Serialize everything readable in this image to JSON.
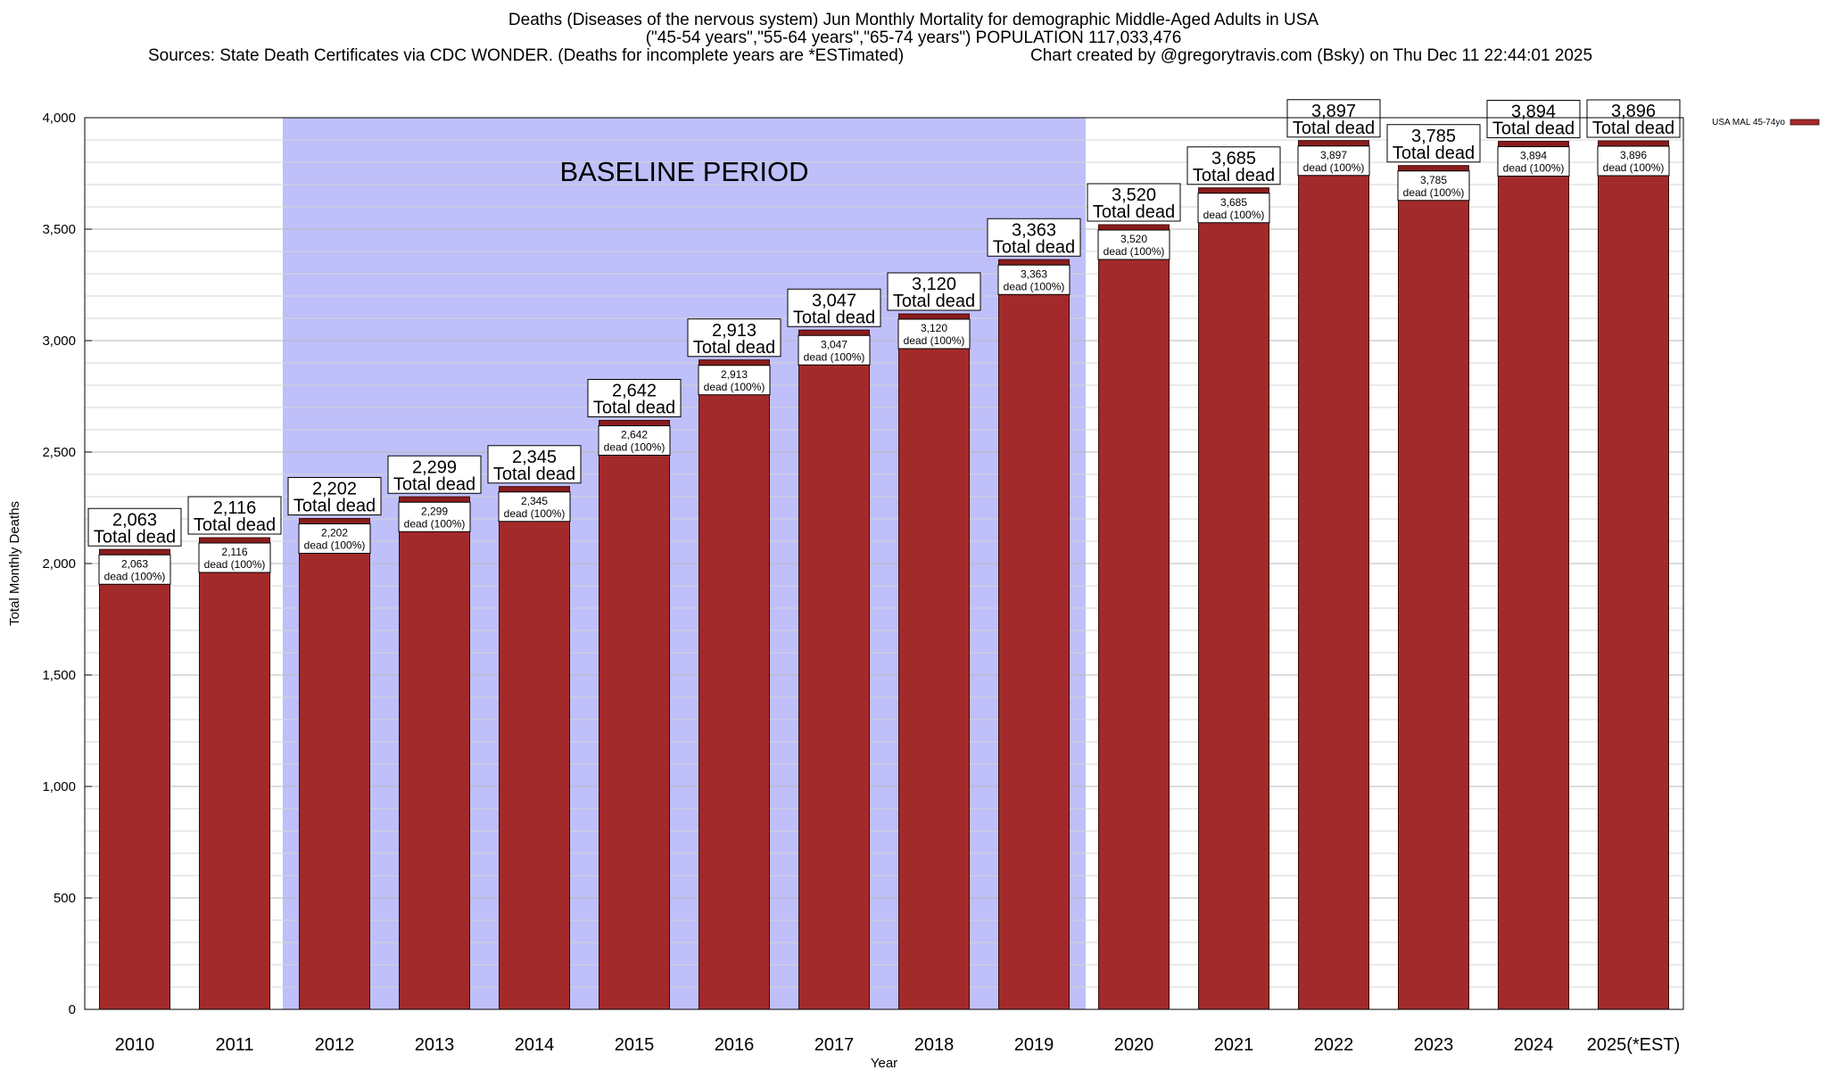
{
  "header": {
    "title_line1": "Deaths (Diseases of the nervous system) Jun Monthly Mortality for demographic Middle-Aged Adults in USA",
    "title_line2": "(\"45-54 years\",\"55-64 years\",\"65-74 years\") POPULATION 117,033,476",
    "sources": "Sources: State Death Certificates via CDC WONDER. (Deaths for incomplete years are *ESTimated)",
    "credit": "Chart created by @gregorytravis.com (Bsky) on Thu Dec 11 22:44:01 2025"
  },
  "chart_data": {
    "type": "bar",
    "categories": [
      "2010",
      "2011",
      "2012",
      "2013",
      "2014",
      "2015",
      "2016",
      "2017",
      "2018",
      "2019",
      "2020",
      "2021",
      "2022",
      "2023",
      "2024",
      "2025(*EST)"
    ],
    "values": [
      2063,
      2116,
      2202,
      2299,
      2345,
      2642,
      2913,
      3047,
      3120,
      3363,
      3520,
      3685,
      3897,
      3785,
      3894,
      3896
    ],
    "value_labels": [
      "2,063",
      "2,116",
      "2,202",
      "2,299",
      "2,345",
      "2,642",
      "2,913",
      "3,047",
      "3,120",
      "3,363",
      "3,520",
      "3,685",
      "3,897",
      "3,785",
      "3,894",
      "3,896"
    ],
    "top_label_caption": "Total dead",
    "inner_label_caption": "dead (100%)",
    "series": [
      {
        "name": "USA MAL 45-74yo",
        "values": [
          2063,
          2116,
          2202,
          2299,
          2345,
          2642,
          2913,
          3047,
          3120,
          3363,
          3520,
          3685,
          3897,
          3785,
          3894,
          3896
        ]
      }
    ],
    "xlabel": "Year",
    "ylabel": "Total Monthly Deaths",
    "ylim": [
      0,
      4000
    ],
    "yticks": [
      0,
      500,
      1000,
      1500,
      2000,
      2500,
      3000,
      3500,
      4000
    ],
    "ytick_labels": [
      "0",
      "500",
      "1,000",
      "1,500",
      "2,000",
      "2,500",
      "3,000",
      "3,500",
      "4,000"
    ],
    "minor_gridlines_every": 100,
    "grid": true,
    "legend_placement": "top-right",
    "baseline_period": {
      "label": "BASELINE PERIOD",
      "from": "2012",
      "to": "2019",
      "color": "#bfbffa"
    },
    "colors": {
      "bar": "#a32a2a",
      "bar_cap": "#8a1c1c",
      "baseline_shade": "#bfbffa"
    }
  }
}
